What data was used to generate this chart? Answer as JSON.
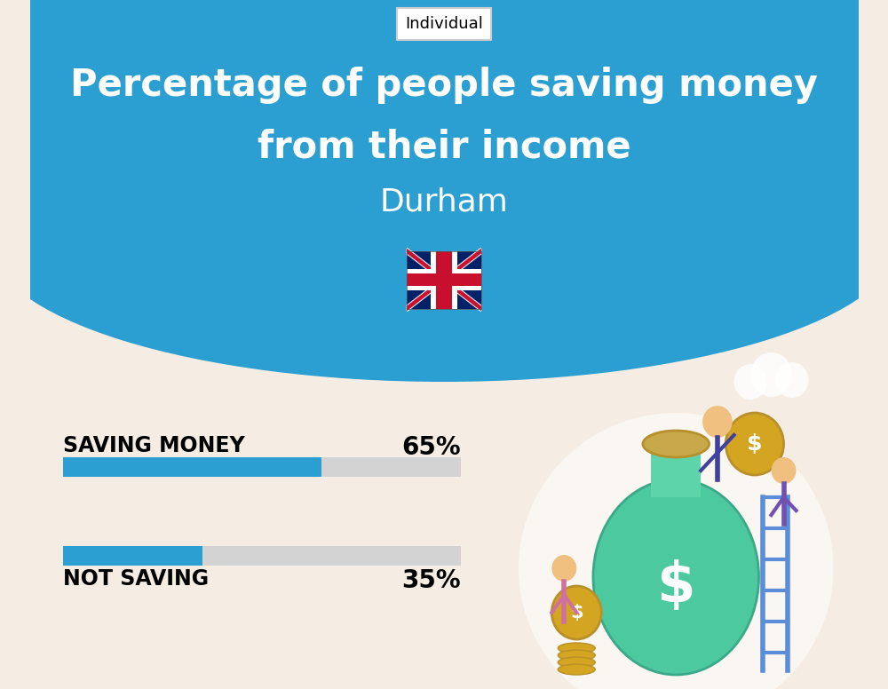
{
  "title_line1": "Percentage of people saving money",
  "title_line2": "from their income",
  "subtitle": "Durham",
  "tag_label": "Individual",
  "bg_top_color": "#2B9FD1",
  "bg_bottom_color": "#F5EDE3",
  "bar_color": "#2B9FD1",
  "bar_bg_color": "#D3D3D3",
  "saving_label": "SAVING MONEY",
  "saving_value": 65,
  "saving_pct_label": "65%",
  "not_saving_label": "NOT SAVING",
  "not_saving_value": 35,
  "not_saving_pct_label": "35%",
  "title_fontsize": 30,
  "subtitle_fontsize": 26,
  "label_fontsize": 17,
  "pct_fontsize": 20,
  "tag_fontsize": 13,
  "fig_width": 10.0,
  "fig_height": 7.76,
  "dpi": 100
}
